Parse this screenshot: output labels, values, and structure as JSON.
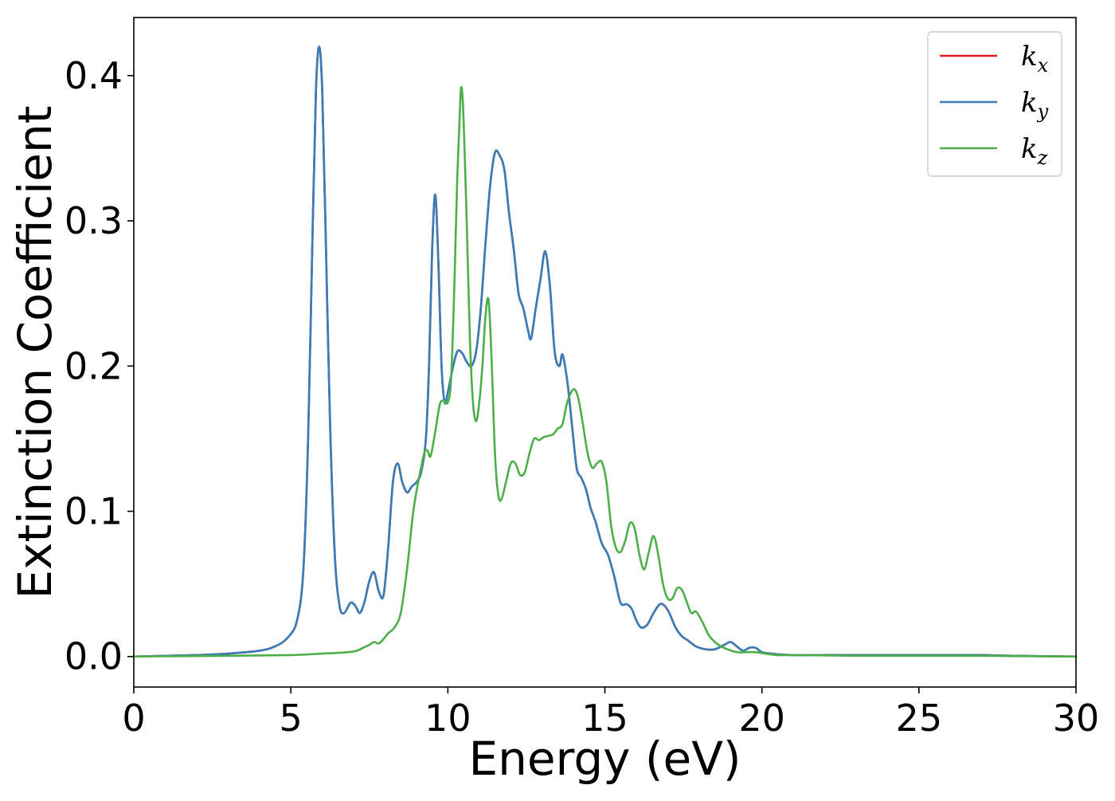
{
  "chart_data": {
    "type": "line",
    "xlabel": "Energy (eV)",
    "ylabel": "Extinction Coefficient",
    "xlim": [
      0,
      30
    ],
    "ylim": [
      -0.021,
      0.44
    ],
    "xticks": [
      0,
      5,
      10,
      15,
      20,
      25,
      30
    ],
    "xtick_labels": [
      "0",
      "5",
      "10",
      "15",
      "20",
      "25",
      "30"
    ],
    "yticks": [
      0.0,
      0.1,
      0.2,
      0.3,
      0.4
    ],
    "ytick_labels": [
      "0.0",
      "0.1",
      "0.2",
      "0.3",
      "0.4"
    ],
    "grid": false,
    "legend_position": "top-right",
    "series": [
      {
        "name": "k_x",
        "label_main": "k",
        "label_sub": "x",
        "color": "#e41a1c",
        "x": [
          0,
          2,
          3,
          4,
          4.5,
          4.9,
          5.2,
          5.4,
          5.55,
          5.7,
          5.8,
          5.9,
          6.0,
          6.1,
          6.25,
          6.4,
          6.55,
          6.7,
          6.9,
          7.05,
          7.2,
          7.35,
          7.5,
          7.65,
          7.8,
          7.95,
          8.1,
          8.25,
          8.4,
          8.55,
          8.7,
          8.85,
          9.0,
          9.15,
          9.3,
          9.4,
          9.5,
          9.6,
          9.7,
          9.8,
          9.9,
          10.0,
          10.15,
          10.3,
          10.45,
          10.6,
          10.75,
          10.9,
          11.05,
          11.2,
          11.35,
          11.5,
          11.65,
          11.8,
          11.95,
          12.1,
          12.25,
          12.4,
          12.55,
          12.65,
          12.8,
          12.95,
          13.1,
          13.25,
          13.4,
          13.55,
          13.65,
          13.8,
          13.95,
          14.1,
          14.25,
          14.4,
          14.55,
          14.7,
          14.9,
          15.1,
          15.3,
          15.5,
          15.7,
          15.85,
          16.0,
          16.15,
          16.35,
          16.55,
          16.75,
          16.9,
          17.05,
          17.25,
          17.45,
          17.65,
          17.9,
          18.2,
          18.5,
          18.8,
          19.0,
          19.2,
          19.4,
          19.6,
          19.8,
          20.0,
          20.3,
          21,
          23,
          25,
          26,
          27,
          28,
          30
        ],
        "y": [
          0,
          0.001,
          0.002,
          0.004,
          0.007,
          0.013,
          0.025,
          0.06,
          0.15,
          0.3,
          0.39,
          0.42,
          0.39,
          0.3,
          0.16,
          0.07,
          0.035,
          0.03,
          0.037,
          0.035,
          0.03,
          0.038,
          0.052,
          0.058,
          0.045,
          0.042,
          0.075,
          0.12,
          0.133,
          0.12,
          0.113,
          0.117,
          0.12,
          0.127,
          0.15,
          0.2,
          0.28,
          0.318,
          0.27,
          0.2,
          0.175,
          0.182,
          0.198,
          0.21,
          0.209,
          0.203,
          0.2,
          0.21,
          0.24,
          0.285,
          0.325,
          0.347,
          0.345,
          0.335,
          0.305,
          0.28,
          0.25,
          0.24,
          0.225,
          0.219,
          0.24,
          0.26,
          0.279,
          0.255,
          0.21,
          0.2,
          0.208,
          0.19,
          0.16,
          0.13,
          0.123,
          0.115,
          0.102,
          0.093,
          0.078,
          0.07,
          0.055,
          0.037,
          0.036,
          0.033,
          0.025,
          0.02,
          0.022,
          0.03,
          0.036,
          0.035,
          0.03,
          0.02,
          0.014,
          0.011,
          0.007,
          0.005,
          0.005,
          0.008,
          0.01,
          0.007,
          0.004,
          0.006,
          0.006,
          0.003,
          0.002,
          0.001,
          0.001,
          0.001,
          0.001,
          0.001,
          0.0005,
          0
        ]
      },
      {
        "name": "k_y",
        "label_main": "k",
        "label_sub": "y",
        "color": "#377eb8",
        "x": [
          0,
          2,
          3,
          4,
          4.5,
          4.9,
          5.2,
          5.4,
          5.55,
          5.7,
          5.8,
          5.9,
          6.0,
          6.1,
          6.25,
          6.4,
          6.55,
          6.7,
          6.9,
          7.05,
          7.2,
          7.35,
          7.5,
          7.65,
          7.8,
          7.95,
          8.1,
          8.25,
          8.4,
          8.55,
          8.7,
          8.85,
          9.0,
          9.15,
          9.3,
          9.4,
          9.5,
          9.6,
          9.7,
          9.8,
          9.9,
          10.0,
          10.15,
          10.3,
          10.45,
          10.6,
          10.75,
          10.9,
          11.05,
          11.2,
          11.35,
          11.5,
          11.65,
          11.8,
          11.95,
          12.1,
          12.25,
          12.4,
          12.55,
          12.65,
          12.8,
          12.95,
          13.1,
          13.25,
          13.4,
          13.55,
          13.65,
          13.8,
          13.95,
          14.1,
          14.25,
          14.4,
          14.55,
          14.7,
          14.9,
          15.1,
          15.3,
          15.5,
          15.7,
          15.85,
          16.0,
          16.15,
          16.35,
          16.55,
          16.75,
          16.9,
          17.05,
          17.25,
          17.45,
          17.65,
          17.9,
          18.2,
          18.5,
          18.8,
          19.0,
          19.2,
          19.4,
          19.6,
          19.8,
          20.0,
          20.3,
          21,
          23,
          25,
          26,
          27,
          28,
          30
        ],
        "y": [
          0,
          0.001,
          0.002,
          0.004,
          0.007,
          0.013,
          0.025,
          0.06,
          0.15,
          0.3,
          0.39,
          0.42,
          0.39,
          0.3,
          0.16,
          0.07,
          0.035,
          0.03,
          0.037,
          0.035,
          0.03,
          0.038,
          0.052,
          0.058,
          0.045,
          0.042,
          0.075,
          0.12,
          0.133,
          0.12,
          0.113,
          0.117,
          0.12,
          0.127,
          0.15,
          0.2,
          0.28,
          0.318,
          0.27,
          0.2,
          0.175,
          0.182,
          0.198,
          0.21,
          0.209,
          0.203,
          0.2,
          0.21,
          0.24,
          0.285,
          0.325,
          0.347,
          0.345,
          0.335,
          0.305,
          0.28,
          0.25,
          0.24,
          0.225,
          0.219,
          0.24,
          0.26,
          0.279,
          0.255,
          0.21,
          0.2,
          0.208,
          0.19,
          0.16,
          0.13,
          0.123,
          0.115,
          0.102,
          0.093,
          0.078,
          0.07,
          0.055,
          0.037,
          0.036,
          0.033,
          0.025,
          0.02,
          0.022,
          0.03,
          0.036,
          0.035,
          0.03,
          0.02,
          0.014,
          0.011,
          0.007,
          0.005,
          0.005,
          0.008,
          0.01,
          0.007,
          0.004,
          0.006,
          0.006,
          0.003,
          0.002,
          0.001,
          0.001,
          0.001,
          0.001,
          0.001,
          0.0005,
          0
        ]
      },
      {
        "name": "k_z",
        "label_main": "k",
        "label_sub": "z",
        "color": "#4daf4a",
        "x": [
          0,
          3,
          5,
          6,
          6.8,
          7.1,
          7.3,
          7.5,
          7.65,
          7.8,
          7.95,
          8.1,
          8.3,
          8.5,
          8.7,
          8.9,
          9.1,
          9.25,
          9.35,
          9.45,
          9.6,
          9.75,
          9.9,
          10.0,
          10.1,
          10.2,
          10.3,
          10.4,
          10.45,
          10.5,
          10.6,
          10.7,
          10.8,
          10.9,
          11.0,
          11.1,
          11.2,
          11.3,
          11.4,
          11.5,
          11.6,
          11.7,
          11.85,
          12.0,
          12.15,
          12.3,
          12.45,
          12.6,
          12.75,
          12.9,
          13.05,
          13.2,
          13.35,
          13.5,
          13.65,
          13.8,
          14.0,
          14.15,
          14.3,
          14.45,
          14.6,
          14.75,
          14.9,
          15.05,
          15.2,
          15.35,
          15.5,
          15.65,
          15.8,
          15.95,
          16.1,
          16.25,
          16.4,
          16.55,
          16.7,
          16.85,
          17.0,
          17.15,
          17.3,
          17.45,
          17.6,
          17.75,
          17.9,
          18.1,
          18.3,
          18.5,
          18.7,
          18.9,
          19.2,
          19.5,
          19.8,
          20.1,
          20.5,
          21,
          22,
          23,
          25,
          27,
          28,
          30
        ],
        "y": [
          0,
          0.0005,
          0.001,
          0.002,
          0.003,
          0.004,
          0.006,
          0.008,
          0.01,
          0.009,
          0.012,
          0.016,
          0.02,
          0.03,
          0.06,
          0.1,
          0.125,
          0.14,
          0.142,
          0.138,
          0.155,
          0.174,
          0.176,
          0.175,
          0.19,
          0.25,
          0.33,
          0.385,
          0.39,
          0.37,
          0.3,
          0.22,
          0.175,
          0.162,
          0.175,
          0.2,
          0.235,
          0.245,
          0.2,
          0.14,
          0.112,
          0.108,
          0.12,
          0.133,
          0.133,
          0.125,
          0.127,
          0.14,
          0.15,
          0.149,
          0.151,
          0.152,
          0.153,
          0.157,
          0.16,
          0.175,
          0.184,
          0.178,
          0.16,
          0.14,
          0.13,
          0.133,
          0.134,
          0.12,
          0.09,
          0.075,
          0.072,
          0.08,
          0.092,
          0.088,
          0.07,
          0.06,
          0.072,
          0.083,
          0.07,
          0.05,
          0.04,
          0.04,
          0.047,
          0.046,
          0.038,
          0.03,
          0.031,
          0.024,
          0.015,
          0.01,
          0.007,
          0.005,
          0.003,
          0.003,
          0.003,
          0.002,
          0.001,
          0.001,
          0.0008,
          0.0005,
          0.0005,
          0.0005,
          0.0003,
          0
        ]
      }
    ]
  }
}
